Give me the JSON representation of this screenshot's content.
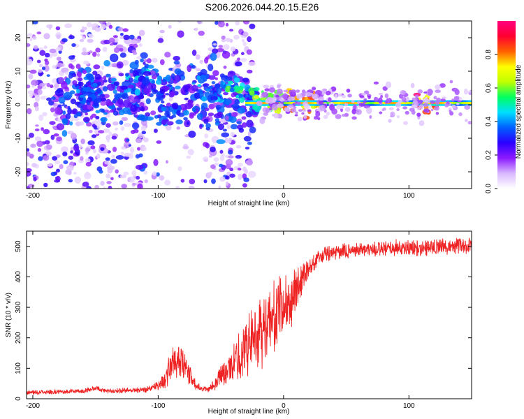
{
  "title": "S206.2026.044.20.15.E26",
  "chart_data": [
    {
      "type": "heatmap",
      "name": "spectrogram",
      "xlabel": "Height of straight line (km)",
      "ylabel": "Frequency (Hz)",
      "xlim": [
        -205,
        150
      ],
      "ylim": [
        -25,
        25
      ],
      "xticks": [
        -200,
        -100,
        0,
        100
      ],
      "yticks": [
        -20,
        -10,
        0,
        10,
        20
      ],
      "xtick_labels": [
        "-200",
        "-100",
        "0",
        "100"
      ],
      "ytick_labels": [
        "-20",
        "-10",
        "0",
        "10",
        "20"
      ],
      "colorbar": {
        "label": "Normalized spectral amplitude",
        "range": [
          0,
          1
        ],
        "ticks": [
          0.0,
          0.2,
          0.4,
          0.6,
          0.8
        ],
        "tick_labels": [
          "0.0",
          "0.2",
          "0.4",
          "0.6",
          "0.8"
        ],
        "colors": [
          "#ffffff",
          "#d9b8ff",
          "#8c1aff",
          "#2a00ff",
          "#0060ff",
          "#00e0ff",
          "#00ff60",
          "#c0ff00",
          "#ffff00",
          "#ff6000",
          "#ff0030",
          "#ff0080"
        ]
      },
      "features": {
        "carrier_band": {
          "x_range": [
            -30,
            150
          ],
          "freq_hz": 0.5,
          "amplitude_range": [
            0.3,
            0.9
          ]
        },
        "scatter_region": {
          "x_range": [
            -205,
            -25
          ],
          "freq_range_hz": [
            -25,
            25
          ],
          "amplitude_range": [
            0.05,
            0.35
          ]
        },
        "arc_clusters": [
          {
            "x": -160,
            "freq_hz": 3,
            "amp": 0.3
          },
          {
            "x": -150,
            "freq_hz": 2,
            "amp": 0.3
          },
          {
            "x": -120,
            "freq_hz": 7,
            "amp": 0.35
          },
          {
            "x": -110,
            "freq_hz": 10,
            "amp": 0.35
          },
          {
            "x": -100,
            "freq_hz": 4,
            "amp": 0.3
          },
          {
            "x": -90,
            "freq_hz": -2,
            "amp": 0.3
          },
          {
            "x": -65,
            "freq_hz": 5,
            "amp": 0.35
          },
          {
            "x": -55,
            "freq_hz": 2,
            "amp": 0.35
          },
          {
            "x": -45,
            "freq_hz": 6,
            "amp": 0.4
          },
          {
            "x": -35,
            "freq_hz": 4,
            "amp": 0.45
          },
          {
            "x": -20,
            "freq_hz": 2,
            "amp": 0.55
          },
          {
            "x": -10,
            "freq_hz": 1,
            "amp": 0.6
          },
          {
            "x": 5,
            "freq_hz": 1,
            "amp": 0.8
          },
          {
            "x": 20,
            "freq_hz": 0.5,
            "amp": 0.8
          },
          {
            "x": 115,
            "freq_hz": 0.5,
            "amp": 0.85
          }
        ]
      }
    },
    {
      "type": "line",
      "name": "snr",
      "xlabel": "Height of straight line (km)",
      "ylabel": "SNR (10 * v/v)",
      "xlim": [
        -205,
        150
      ],
      "ylim": [
        0,
        550
      ],
      "xticks": [
        -200,
        -100,
        0,
        100
      ],
      "yticks": [
        0,
        100,
        200,
        300,
        400,
        500
      ],
      "xtick_labels": [
        "-200",
        "-100",
        "0",
        "100"
      ],
      "ytick_labels": [
        "0",
        "100",
        "200",
        "300",
        "400",
        "500"
      ],
      "color": "#ee2222",
      "envelope": {
        "x": [
          -205,
          -160,
          -150,
          -140,
          -110,
          -100,
          -95,
          -90,
          -85,
          -80,
          -75,
          -70,
          -65,
          -60,
          -55,
          -50,
          -45,
          -40,
          -35,
          -30,
          -25,
          -20,
          -15,
          -10,
          -5,
          0,
          5,
          10,
          15,
          20,
          25,
          30,
          35,
          40,
          50,
          60,
          70,
          80,
          90,
          100,
          110,
          120,
          130,
          140,
          150
        ],
        "mean": [
          20,
          25,
          35,
          25,
          30,
          45,
          60,
          110,
          120,
          110,
          80,
          45,
          35,
          30,
          50,
          80,
          90,
          110,
          140,
          170,
          200,
          220,
          240,
          250,
          280,
          300,
          320,
          360,
          400,
          430,
          450,
          465,
          475,
          480,
          485,
          490,
          490,
          490,
          495,
          495,
          495,
          500,
          500,
          500,
          505
        ],
        "spread": [
          8,
          8,
          12,
          8,
          12,
          18,
          35,
          60,
          70,
          60,
          40,
          18,
          12,
          12,
          25,
          40,
          50,
          70,
          100,
          110,
          120,
          130,
          140,
          130,
          130,
          120,
          110,
          80,
          60,
          40,
          35,
          30,
          30,
          28,
          28,
          28,
          30,
          30,
          30,
          30,
          30,
          30,
          30,
          30,
          30
        ]
      }
    }
  ]
}
